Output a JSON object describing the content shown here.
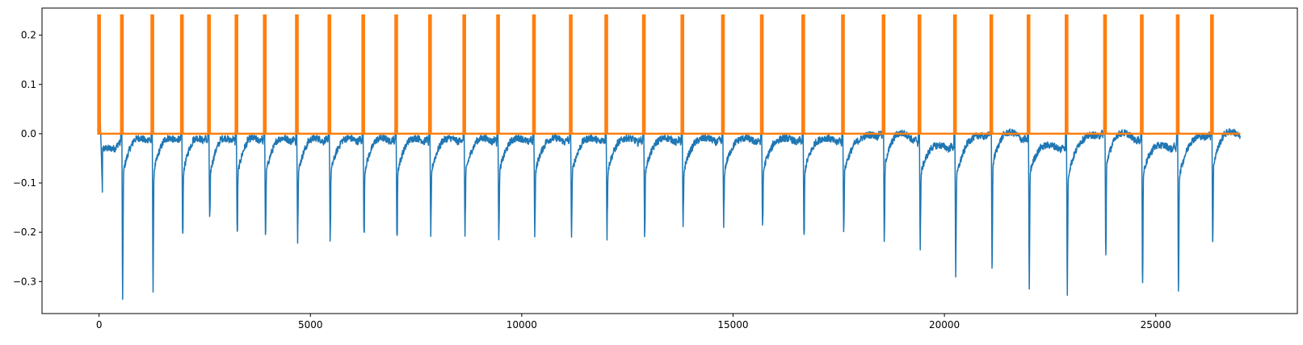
{
  "chart_data": {
    "type": "line",
    "title": "",
    "xlabel": "",
    "ylabel": "",
    "xlim": [
      -1350,
      28350
    ],
    "ylim": [
      -0.365,
      0.255
    ],
    "x_ticks": [
      0,
      5000,
      10000,
      15000,
      20000,
      25000
    ],
    "x_tick_labels": [
      "0",
      "5000",
      "10000",
      "15000",
      "20000",
      "25000"
    ],
    "y_ticks": [
      -0.3,
      -0.2,
      -0.1,
      0.0,
      0.1,
      0.2
    ],
    "y_tick_labels": [
      "−0.3",
      "−0.2",
      "−0.1",
      "0.0",
      "0.1",
      "0.2"
    ],
    "grid": false,
    "legend": "none",
    "colors": {
      "signal": "#1f77b4",
      "peaks": "#ff7f0e"
    },
    "series": [
      {
        "kind": "ecg-signal",
        "x_range": [
          0,
          27000
        ],
        "beat_positions": [
          [
            540,
            0.16,
            -0.34
          ],
          [
            1260,
            0.11,
            -0.32
          ],
          [
            1960,
            0.17,
            -0.21
          ],
          [
            2600,
            0.165,
            -0.177
          ],
          [
            3250,
            0.095,
            -0.205
          ],
          [
            3920,
            0.09,
            -0.215
          ],
          [
            4680,
            0.08,
            -0.215
          ],
          [
            5450,
            0.09,
            -0.218
          ],
          [
            6250,
            0.08,
            -0.21
          ],
          [
            7030,
            0.09,
            -0.218
          ],
          [
            7830,
            0.09,
            -0.215
          ],
          [
            8640,
            0.085,
            -0.21
          ],
          [
            9440,
            0.09,
            -0.218
          ],
          [
            10290,
            0.08,
            -0.21
          ],
          [
            11160,
            0.09,
            -0.215
          ],
          [
            12000,
            0.08,
            -0.21
          ],
          [
            12890,
            0.06,
            -0.21
          ],
          [
            13800,
            0.065,
            -0.195
          ],
          [
            14760,
            0.075,
            -0.187
          ],
          [
            15680,
            0.06,
            -0.197
          ],
          [
            16660,
            0.055,
            -0.215
          ],
          [
            17600,
            0.055,
            -0.2
          ],
          [
            18560,
            0.11,
            -0.24
          ],
          [
            19410,
            0.145,
            -0.23
          ],
          [
            20250,
            0.095,
            -0.275
          ],
          [
            21110,
            0.125,
            -0.29
          ],
          [
            21990,
            0.145,
            -0.317
          ],
          [
            22890,
            0.115,
            -0.312
          ],
          [
            23800,
            0.105,
            -0.265
          ],
          [
            24670,
            0.115,
            -0.308
          ],
          [
            25520,
            0.135,
            -0.312
          ],
          [
            26330,
            0.16,
            -0.24
          ]
        ]
      },
      {
        "kind": "peak-markers",
        "baseline": 0.0,
        "height": 0.24,
        "x_range": [
          0,
          27000
        ],
        "peaks": [
          0,
          540,
          1260,
          1960,
          2600,
          3250,
          3920,
          4680,
          5450,
          6250,
          7030,
          7830,
          8640,
          9440,
          10290,
          11160,
          12000,
          12890,
          13800,
          14760,
          15680,
          16660,
          17600,
          18560,
          19410,
          20250,
          21110,
          21990,
          22890,
          23800,
          24670,
          25520,
          26330
        ]
      }
    ]
  }
}
